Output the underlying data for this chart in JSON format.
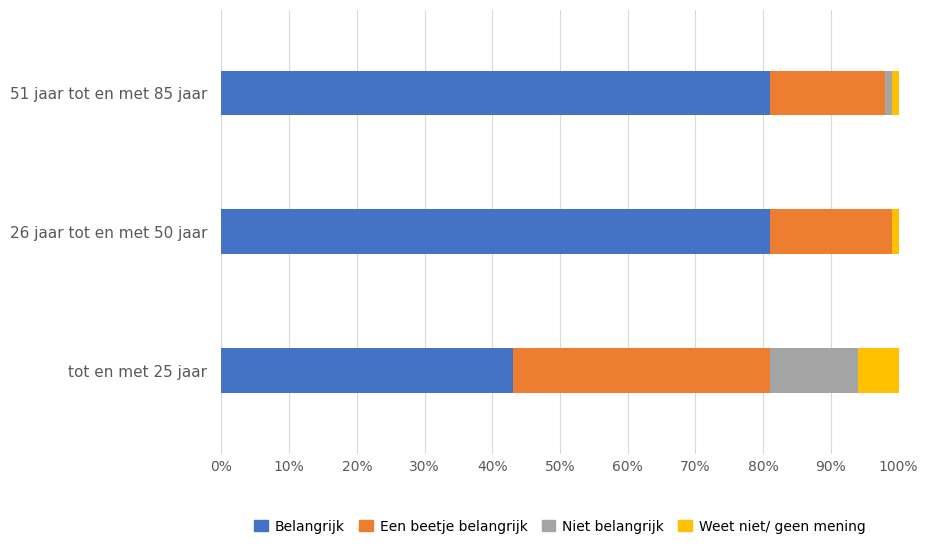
{
  "categories": [
    "51 jaar tot en met 85 jaar",
    "26 jaar tot en met 50 jaar",
    "tot en met 25 jaar"
  ],
  "series": [
    {
      "label": "Belangrijk",
      "values": [
        81,
        81,
        43
      ],
      "color": "#4472C4"
    },
    {
      "label": "Een beetje belangrijk",
      "values": [
        17,
        18,
        38
      ],
      "color": "#ED7D31"
    },
    {
      "label": "Niet belangrijk",
      "values": [
        1,
        0,
        13
      ],
      "color": "#A5A5A5"
    },
    {
      "label": "Weet niet/ geen mening",
      "values": [
        1,
        1,
        6
      ],
      "color": "#FFC000"
    }
  ],
  "xlim": [
    0,
    100
  ],
  "xtick_labels": [
    "0%",
    "10%",
    "20%",
    "30%",
    "40%",
    "50%",
    "60%",
    "70%",
    "80%",
    "90%",
    "100%"
  ],
  "xtick_values": [
    0,
    10,
    20,
    30,
    40,
    50,
    60,
    70,
    80,
    90,
    100
  ],
  "background_color": "#FFFFFF",
  "grid_color": "#D9D9D9",
  "bar_height": 0.32,
  "legend_fontsize": 10,
  "tick_fontsize": 10,
  "ytick_fontsize": 11
}
